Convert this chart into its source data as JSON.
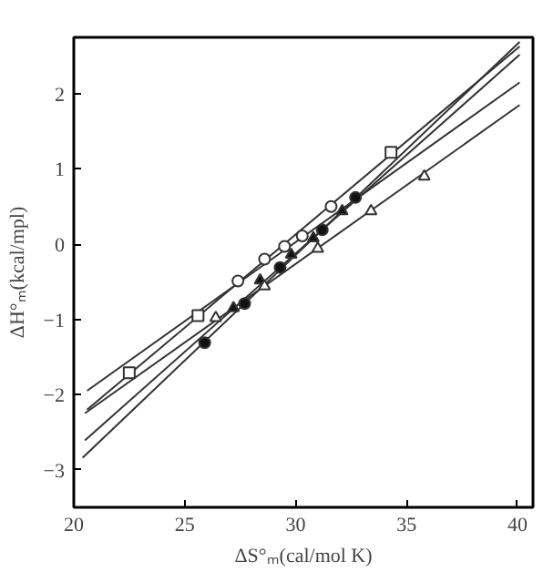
{
  "chart_data": {
    "type": "scatter",
    "xlabel": "ΔS°ₘ(cal/mol K)",
    "ylabel": "ΔH°ₘ(kcal/mpl)",
    "xlim": [
      20,
      40.7
    ],
    "ylim": [
      -3.5,
      2.75
    ],
    "xticks": [
      20,
      25,
      30,
      35,
      40
    ],
    "yticks": [
      -3,
      -2,
      -1,
      0,
      1,
      2
    ],
    "grid": false,
    "series": [
      {
        "marker": "square",
        "color": "#ffffff",
        "x": [
          22.5,
          25.6,
          34.3
        ],
        "values": [
          -1.71,
          -0.95,
          1.22
        ]
      },
      {
        "marker": "circle",
        "color": "#ffffff",
        "x": [
          27.4,
          28.6,
          29.5,
          30.3,
          31.6
        ],
        "values": [
          -0.49,
          -0.2,
          -0.03,
          0.11,
          0.5
        ]
      },
      {
        "marker": "circle",
        "color": "#111111",
        "x": [
          25.9,
          27.7,
          29.3,
          31.2,
          32.7
        ],
        "values": [
          -1.31,
          -0.79,
          -0.31,
          0.19,
          0.62
        ]
      },
      {
        "marker": "triangle",
        "color": "#111111",
        "x": [
          27.2,
          28.4,
          29.8,
          30.8,
          32.1
        ],
        "values": [
          -0.85,
          -0.48,
          -0.14,
          0.08,
          0.44
        ]
      },
      {
        "marker": "triangle",
        "color": "#ffffff",
        "x": [
          26.4,
          28.6,
          31.0,
          33.4,
          35.8
        ],
        "values": [
          -0.98,
          -0.56,
          -0.06,
          0.44,
          0.9
        ]
      },
      {
        "type": "line",
        "color": "#333333",
        "x": [
          20.6,
          40.1
        ],
        "values": [
          -2.2,
          2.63
        ]
      },
      {
        "type": "line",
        "color": "#333333",
        "x": [
          20.6,
          40.1
        ],
        "values": [
          -1.95,
          2.15
        ]
      },
      {
        "type": "line",
        "color": "#333333",
        "x": [
          20.4,
          40.1
        ],
        "values": [
          -2.84,
          2.69
        ]
      },
      {
        "type": "line",
        "color": "#333333",
        "x": [
          20.5,
          40.1
        ],
        "values": [
          -2.61,
          2.52
        ]
      },
      {
        "type": "line",
        "color": "#333333",
        "x": [
          20.5,
          40.1
        ],
        "values": [
          -2.25,
          1.85
        ]
      }
    ]
  }
}
